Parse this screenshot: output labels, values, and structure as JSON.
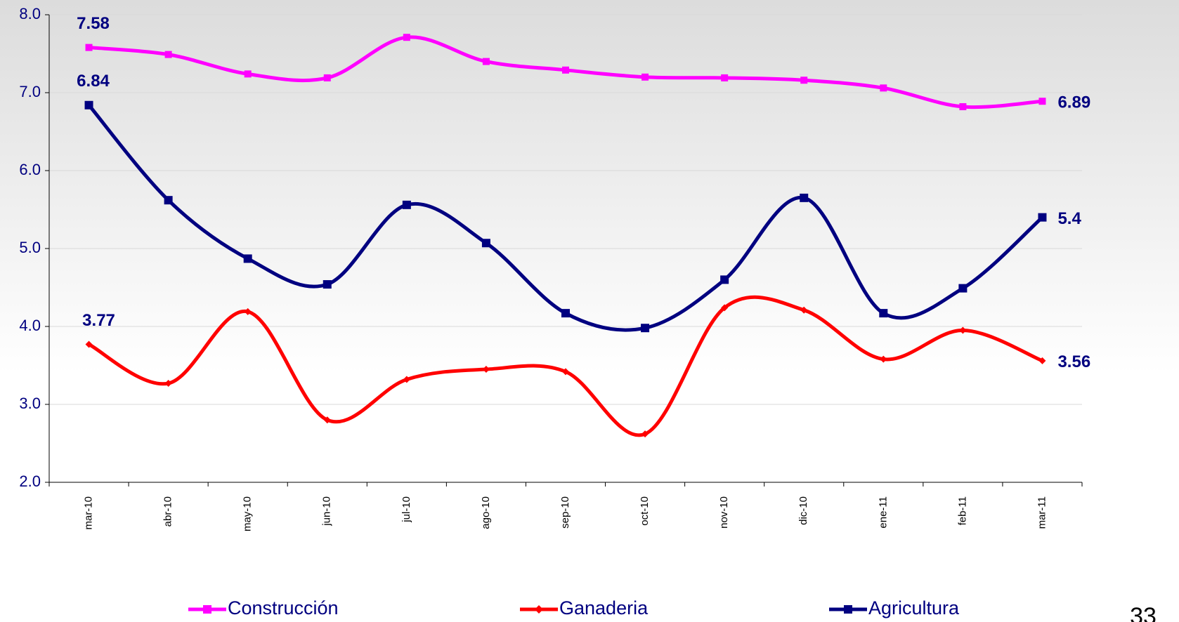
{
  "chart_data": {
    "type": "line",
    "categories": [
      "mar-10",
      "abr-10",
      "may-10",
      "jun-10",
      "jul-10",
      "ago-10",
      "sep-10",
      "oct-10",
      "nov-10",
      "dic-10",
      "ene-11",
      "feb-11",
      "mar-11"
    ],
    "series": [
      {
        "name": "Construcción",
        "color": "#ff00ff",
        "marker": "square",
        "values": [
          7.58,
          7.49,
          7.24,
          7.19,
          7.71,
          7.4,
          7.29,
          7.2,
          7.19,
          7.16,
          7.06,
          6.82,
          6.89
        ]
      },
      {
        "name": "Ganaderia",
        "color": "#ff0000",
        "marker": "diamond",
        "values": [
          3.77,
          3.27,
          4.19,
          2.8,
          3.32,
          3.45,
          3.42,
          2.62,
          4.24,
          4.21,
          3.58,
          3.95,
          3.56
        ]
      },
      {
        "name": "Agricultura",
        "color": "#000080",
        "marker": "square",
        "values": [
          6.84,
          5.62,
          4.87,
          4.54,
          5.56,
          5.07,
          4.17,
          3.98,
          4.6,
          5.65,
          4.17,
          4.49,
          5.4
        ]
      }
    ],
    "ylim": [
      2,
      8
    ],
    "yticks": [
      {
        "value": 2,
        "label": "2.0"
      },
      {
        "value": 3,
        "label": "3.0"
      },
      {
        "value": 4,
        "label": "4.0"
      },
      {
        "value": 5,
        "label": "5.0"
      },
      {
        "value": 6,
        "label": "6.0"
      },
      {
        "value": 7,
        "label": "7.0"
      },
      {
        "value": 8,
        "label": "8.0"
      }
    ],
    "grid": true,
    "smooth": true,
    "data_labels": "first-last",
    "legend": "bottom"
  },
  "page_number": "33"
}
